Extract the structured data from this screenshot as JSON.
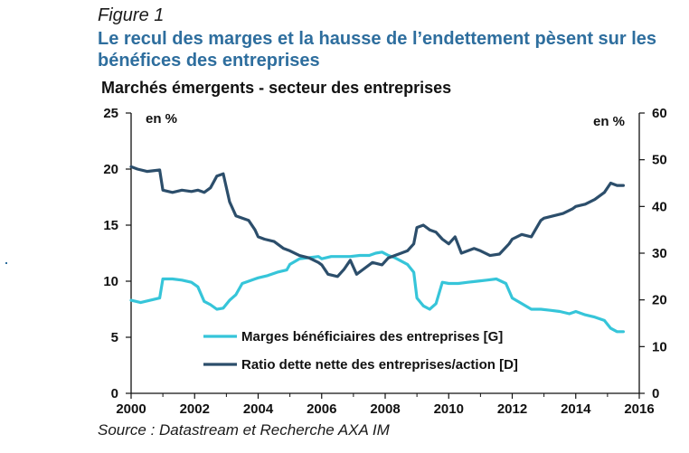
{
  "figure_label": "Figure 1",
  "title": "Le recul des marges et la hausse de l’endettement pèsent sur les bénéfices des entreprises",
  "source": "Source : Datastream et Recherche AXA IM",
  "colors": {
    "margins": "#36c5d9",
    "debt": "#2c4e6b",
    "title": "#2e6e9e"
  },
  "chart_data": {
    "type": "line",
    "title": "Marchés émergents - secteur des entreprises",
    "left_unit": "en %",
    "right_unit": "en %",
    "xlim": [
      2000,
      2016
    ],
    "ylim_left": [
      0,
      25
    ],
    "ylim_right": [
      0,
      60
    ],
    "x_ticks": [
      "2000",
      "2002",
      "2004",
      "2006",
      "2008",
      "2010",
      "2012",
      "2014",
      "2016"
    ],
    "y_left_ticks": [
      "0",
      "5",
      "10",
      "15",
      "20",
      "25"
    ],
    "y_right_ticks": [
      "0",
      "10",
      "20",
      "30",
      "40",
      "50",
      "60"
    ],
    "legend_position": "lower-center",
    "series": [
      {
        "name": "Marges bénéficiaires des entreprises [G]",
        "axis": "left",
        "x": [
          2000.0,
          2000.3,
          2000.6,
          2000.9,
          2001.0,
          2001.3,
          2001.6,
          2001.9,
          2002.1,
          2002.3,
          2002.5,
          2002.7,
          2002.9,
          2003.1,
          2003.3,
          2003.5,
          2003.7,
          2003.9,
          2004.0,
          2004.3,
          2004.6,
          2004.9,
          2005.0,
          2005.3,
          2005.6,
          2005.9,
          2006.0,
          2006.3,
          2006.6,
          2006.9,
          2007.2,
          2007.5,
          2007.7,
          2007.9,
          2008.1,
          2008.3,
          2008.5,
          2008.7,
          2008.9,
          2009.0,
          2009.2,
          2009.4,
          2009.6,
          2009.8,
          2010.0,
          2010.3,
          2010.6,
          2010.9,
          2011.2,
          2011.5,
          2011.8,
          2012.0,
          2012.3,
          2012.6,
          2012.9,
          2013.2,
          2013.5,
          2013.8,
          2014.0,
          2014.3,
          2014.6,
          2014.9,
          2015.1,
          2015.3,
          2015.5
        ],
        "values": [
          8.3,
          8.1,
          8.3,
          8.5,
          10.2,
          10.2,
          10.1,
          9.9,
          9.5,
          8.2,
          7.9,
          7.5,
          7.6,
          8.3,
          8.8,
          9.8,
          10.0,
          10.2,
          10.3,
          10.5,
          10.8,
          11.0,
          11.5,
          12.0,
          12.1,
          12.2,
          12.0,
          12.2,
          12.2,
          12.2,
          12.3,
          12.3,
          12.5,
          12.6,
          12.3,
          12.1,
          11.8,
          11.5,
          10.8,
          8.5,
          7.8,
          7.5,
          8.0,
          9.9,
          9.8,
          9.8,
          9.9,
          10.0,
          10.1,
          10.2,
          9.8,
          8.5,
          8.0,
          7.5,
          7.5,
          7.4,
          7.3,
          7.1,
          7.3,
          7.0,
          6.8,
          6.5,
          5.8,
          5.5,
          5.5
        ]
      },
      {
        "name": "Ratio dette nette des entreprises/action [D]",
        "axis": "right",
        "x": [
          2000.0,
          2000.2,
          2000.5,
          2000.9,
          2001.0,
          2001.3,
          2001.6,
          2001.9,
          2002.1,
          2002.3,
          2002.5,
          2002.7,
          2002.9,
          2003.1,
          2003.3,
          2003.5,
          2003.7,
          2003.9,
          2004.0,
          2004.2,
          2004.5,
          2004.8,
          2005.0,
          2005.3,
          2005.6,
          2005.9,
          2006.0,
          2006.2,
          2006.5,
          2006.7,
          2006.9,
          2007.1,
          2007.3,
          2007.6,
          2007.9,
          2008.1,
          2008.3,
          2008.5,
          2008.7,
          2008.9,
          2009.0,
          2009.2,
          2009.4,
          2009.6,
          2009.8,
          2010.0,
          2010.2,
          2010.4,
          2010.6,
          2010.8,
          2011.0,
          2011.3,
          2011.6,
          2011.9,
          2012.0,
          2012.3,
          2012.6,
          2012.9,
          2013.0,
          2013.3,
          2013.6,
          2013.9,
          2014.0,
          2014.3,
          2014.6,
          2014.9,
          2015.1,
          2015.3,
          2015.5
        ],
        "values": [
          48.5,
          48.0,
          47.5,
          47.8,
          43.5,
          43.0,
          43.5,
          43.2,
          43.5,
          43.0,
          44.0,
          46.5,
          47.0,
          41.0,
          38.0,
          37.5,
          37.0,
          35.0,
          33.5,
          33.0,
          32.5,
          31.0,
          30.5,
          29.5,
          29.0,
          28.0,
          27.5,
          25.5,
          25.0,
          26.5,
          28.5,
          25.5,
          26.5,
          28.0,
          27.5,
          29.0,
          29.5,
          30.0,
          30.5,
          32.0,
          35.5,
          36.0,
          35.0,
          34.5,
          33.0,
          32.0,
          33.5,
          30.0,
          30.5,
          31.0,
          30.5,
          29.5,
          29.8,
          32.0,
          33.0,
          34.0,
          33.5,
          37.0,
          37.5,
          38.0,
          38.5,
          39.5,
          40.0,
          40.5,
          41.5,
          43.0,
          45.0,
          44.5,
          44.5
        ]
      }
    ]
  }
}
